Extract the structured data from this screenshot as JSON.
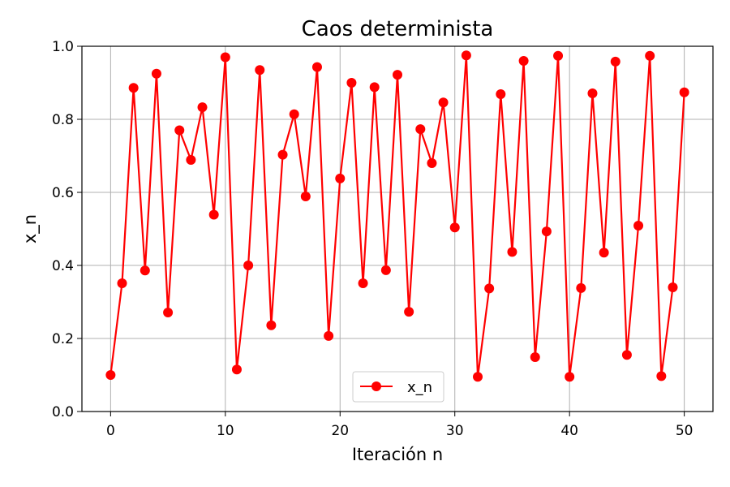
{
  "chart_data": {
    "type": "line",
    "title": "Caos determinista",
    "xlabel": "Iteración n",
    "ylabel": "x_n",
    "xlim": [
      -2.5,
      52.5
    ],
    "ylim": [
      0.0,
      1.0
    ],
    "xticks": [
      0,
      10,
      20,
      30,
      40,
      50
    ],
    "xtick_labels": [
      "0",
      "10",
      "20",
      "30",
      "40",
      "50"
    ],
    "yticks": [
      0.0,
      0.2,
      0.4,
      0.6,
      0.8,
      1.0
    ],
    "ytick_labels": [
      "0.0",
      "0.2",
      "0.4",
      "0.6",
      "0.8",
      "1.0"
    ],
    "grid": true,
    "legend_position": "bottom-center",
    "series": [
      {
        "name": "x_n",
        "color": "#ff0000",
        "marker": "circle",
        "x": [
          0,
          1,
          2,
          3,
          4,
          5,
          6,
          7,
          8,
          9,
          10,
          11,
          12,
          13,
          14,
          15,
          16,
          17,
          18,
          19,
          20,
          21,
          22,
          23,
          24,
          25,
          26,
          27,
          28,
          29,
          30,
          31,
          32,
          33,
          34,
          35,
          36,
          37,
          38,
          39,
          40,
          41,
          42,
          43,
          44,
          45,
          46,
          47,
          48,
          49,
          50
        ],
        "values": [
          0.1,
          0.351,
          0.886,
          0.386,
          0.925,
          0.271,
          0.77,
          0.689,
          0.833,
          0.539,
          0.97,
          0.115,
          0.4,
          0.935,
          0.236,
          0.703,
          0.814,
          0.589,
          0.943,
          0.207,
          0.638,
          0.9,
          0.351,
          0.888,
          0.387,
          0.922,
          0.273,
          0.773,
          0.68,
          0.846,
          0.504,
          0.975,
          0.095,
          0.337,
          0.869,
          0.437,
          0.96,
          0.149,
          0.493,
          0.974,
          0.095,
          0.338,
          0.871,
          0.435,
          0.958,
          0.155,
          0.509,
          0.974,
          0.097,
          0.34,
          0.874
        ]
      }
    ]
  }
}
